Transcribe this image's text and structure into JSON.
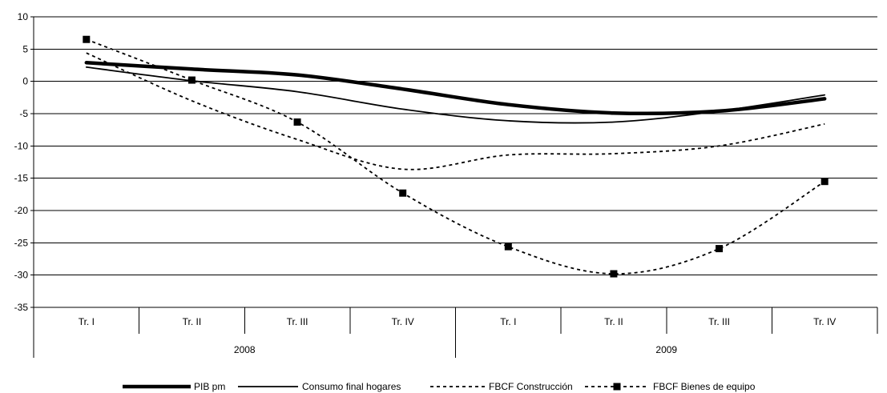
{
  "chart_data": {
    "type": "line",
    "categories": [
      "Tr. I",
      "Tr. II",
      "Tr. III",
      "Tr. IV",
      "Tr. I",
      "Tr. II",
      "Tr. III",
      "Tr. IV"
    ],
    "groups": [
      {
        "label": "2008",
        "span": 4
      },
      {
        "label": "2009",
        "span": 4
      }
    ],
    "ylim": [
      -35,
      10
    ],
    "yticks": [
      10,
      5,
      0,
      -5,
      -10,
      -15,
      -20,
      -25,
      -30,
      -35
    ],
    "grid": "horizontal",
    "legend_position": "bottom",
    "series": [
      {
        "name": "PIB pm",
        "style": "thick",
        "values": [
          2.9,
          1.9,
          1.0,
          -1.2,
          -3.6,
          -4.9,
          -4.6,
          -2.7
        ]
      },
      {
        "name": "Consumo final hogares",
        "style": "thin",
        "values": [
          2.2,
          0.1,
          -1.6,
          -4.3,
          -6.1,
          -6.3,
          -4.6,
          -2.1
        ]
      },
      {
        "name": "FBCF Construcción",
        "style": "dashed",
        "values": [
          4.4,
          -3.0,
          -9.0,
          -13.6,
          -11.4,
          -11.2,
          -10.0,
          -6.6
        ]
      },
      {
        "name": "FBCF Bienes de equipo",
        "style": "dashed-markers",
        "values": [
          6.5,
          0.2,
          -6.3,
          -17.3,
          -25.6,
          -29.8,
          -25.9,
          -15.5
        ]
      }
    ]
  }
}
